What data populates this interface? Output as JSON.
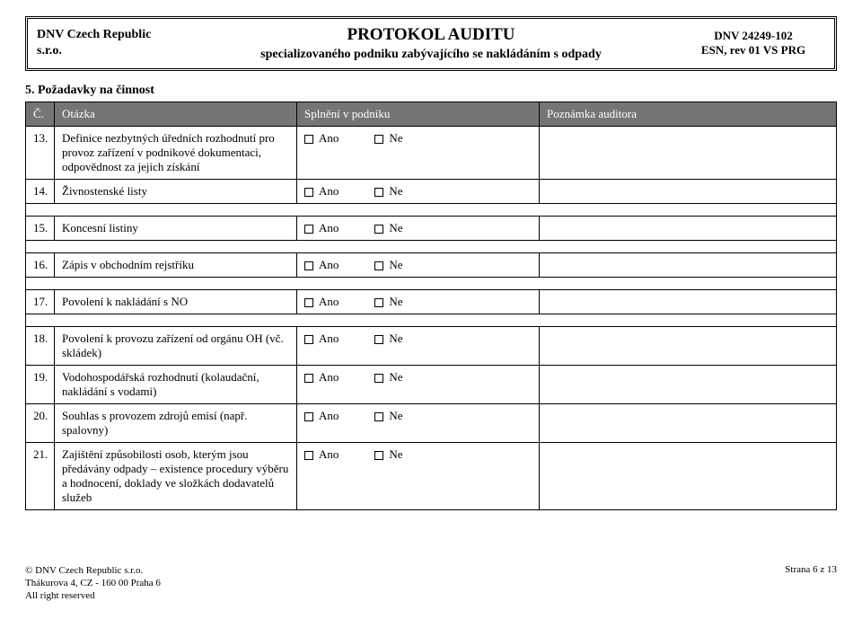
{
  "header": {
    "left_line1": "DNV Czech Republic",
    "left_line2": "s.r.o.",
    "center_title": "PROTOKOL AUDITU",
    "center_sub": "specializovaného podniku zabývajícího se nakládáním s odpady",
    "right_line1": "DNV 24249-102",
    "right_line2": "ESN, rev 01 VS PRG"
  },
  "section_title": "5. Požadavky na činnost",
  "columns": {
    "num": "Č.",
    "question": "Otázka",
    "fulfil": "Splnění v podniku",
    "note": "Poznámka auditora"
  },
  "options": {
    "yes": "Ano",
    "no": "Ne"
  },
  "rows": [
    {
      "num": "13.",
      "q": "Definice nezbytných úředních rozhodnutí pro provoz zařízení v podnikové dokumentaci, odpovědnost za jejich získání",
      "gap_after": false
    },
    {
      "num": "14.",
      "q": "Živnostenské listy",
      "gap_after": true
    },
    {
      "num": "15.",
      "q": "Koncesní listiny",
      "gap_after": true
    },
    {
      "num": "16.",
      "q": "Zápis v obchodním rejstříku",
      "gap_after": true
    },
    {
      "num": "17.",
      "q": "Povolení k nakládání s NO",
      "gap_after": true
    },
    {
      "num": "18.",
      "q": "Povolení k provozu zařízení od orgánu OH (vč. skládek)",
      "gap_after": false
    },
    {
      "num": "19.",
      "q": "Vodohospodářská rozhodnutí (kolaudační, nakládání s vodami)",
      "gap_after": false
    },
    {
      "num": "20.",
      "q": "Souhlas s provozem zdrojů emisí (např. spalovny)",
      "gap_after": false
    },
    {
      "num": "21.",
      "q": "Zajištění způsobilosti osob, kterým jsou předávány odpady – existence procedury výběru a hodnocení, doklady ve složkách dodavatelů služeb",
      "gap_after": false
    }
  ],
  "footer": {
    "left_line1": "© DNV Czech Republic s.r.o.",
    "left_line2": "Thákurova 4, CZ - 160 00  Praha 6",
    "left_line3": "All right reserved",
    "right": "Strana 6 z 13"
  }
}
